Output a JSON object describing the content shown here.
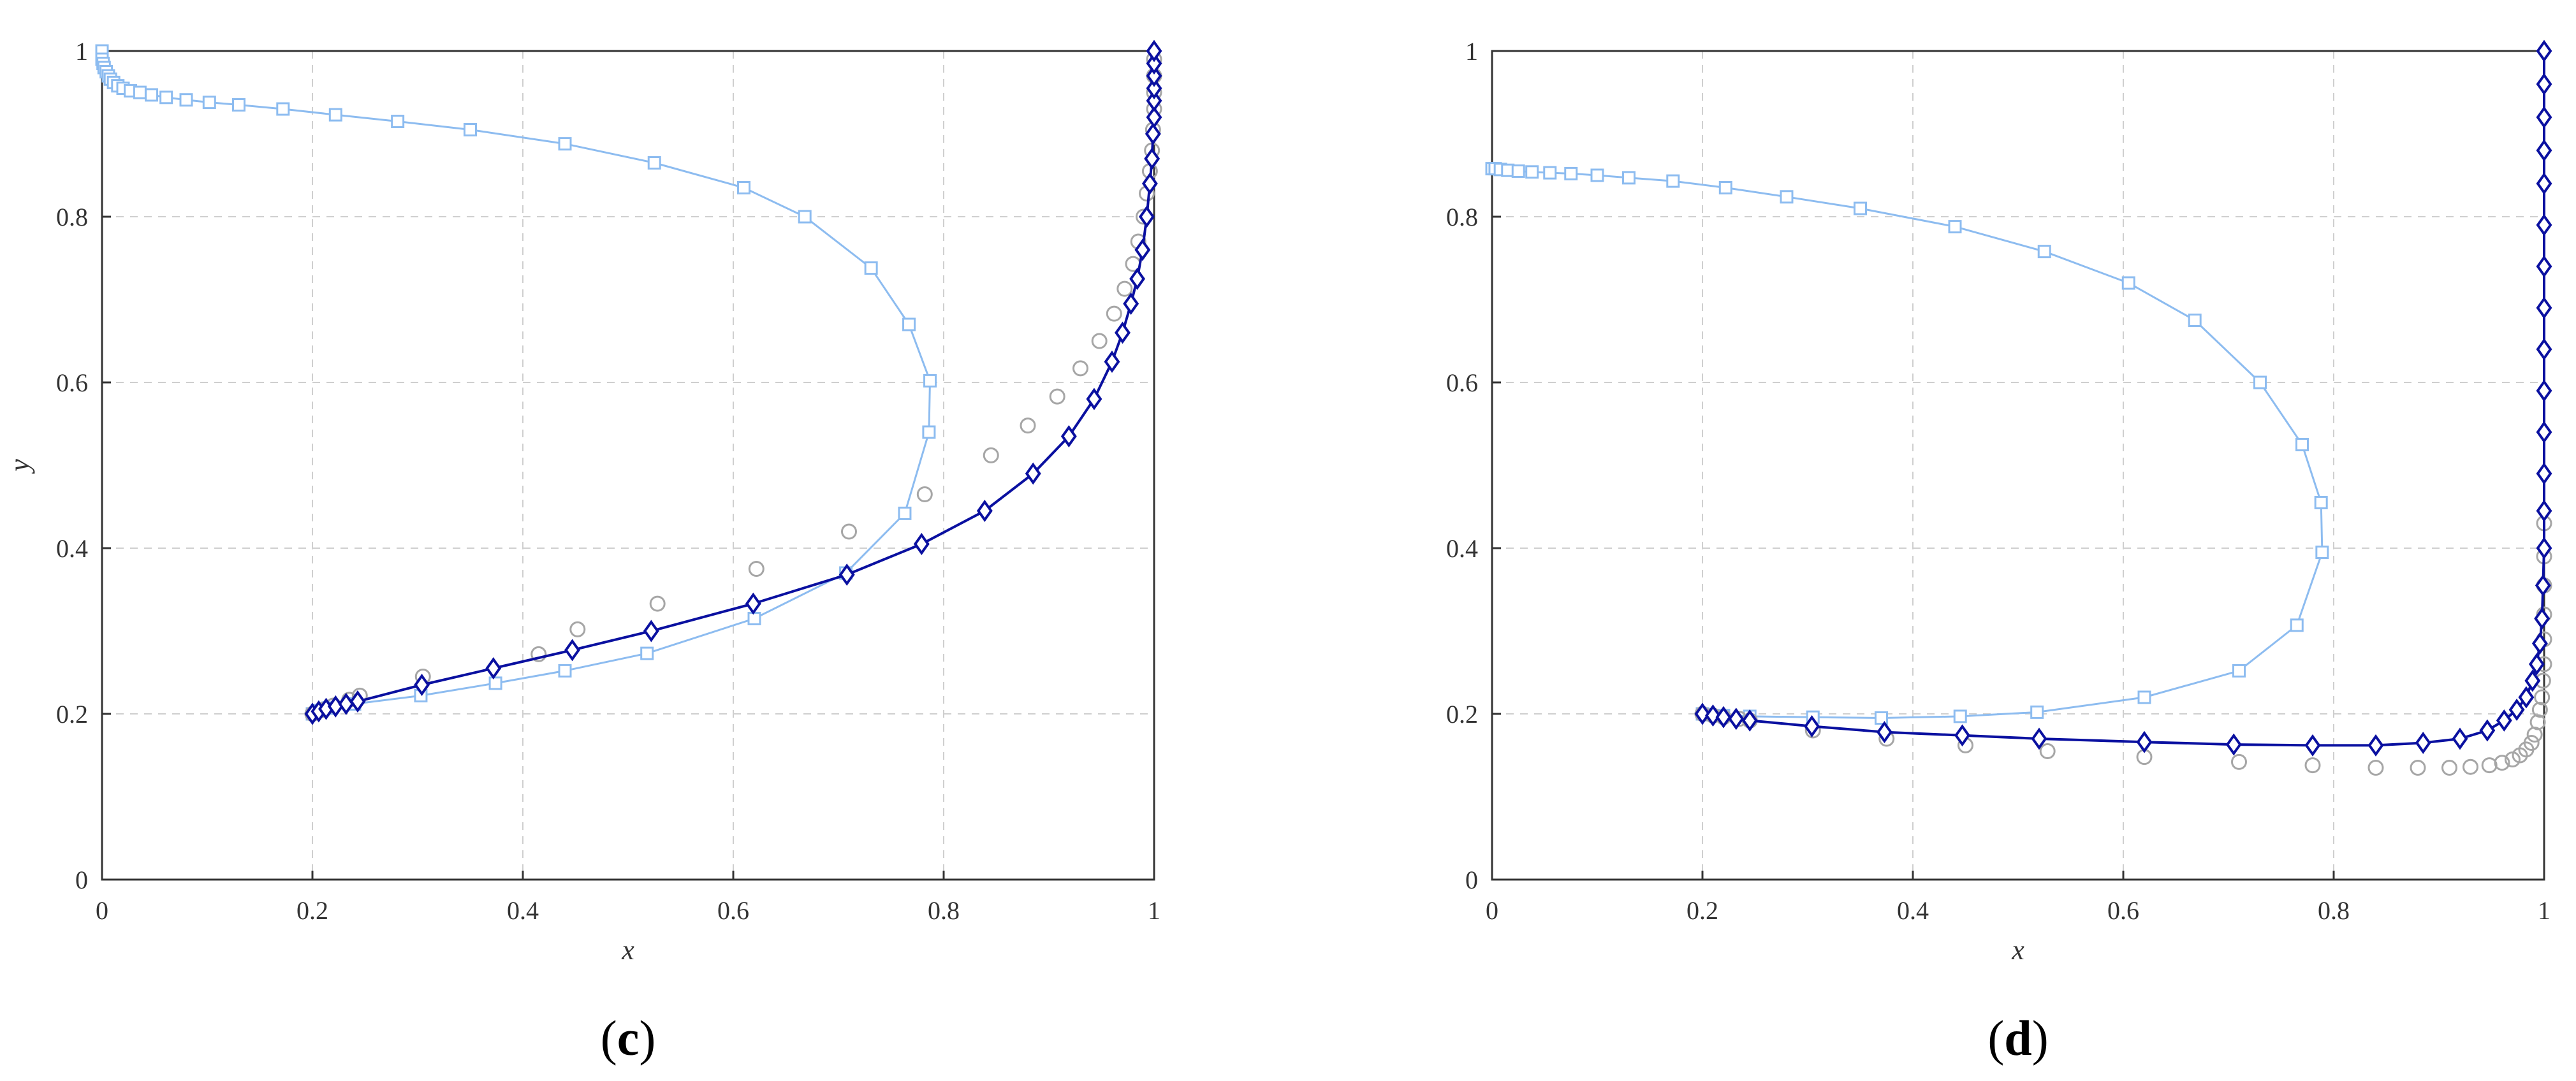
{
  "chart_data": [
    {
      "type": "line",
      "panel_label": "c",
      "xlabel": "x",
      "ylabel": "y",
      "xlim": [
        0,
        1
      ],
      "ylim": [
        0,
        1
      ],
      "xticks": [
        "0",
        "0.2",
        "0.4",
        "0.6",
        "0.8",
        "1"
      ],
      "yticks": [
        "0",
        "0.2",
        "0.4",
        "0.6",
        "0.8",
        "1"
      ],
      "grid": true,
      "series": [
        {
          "marker": "square",
          "line": true,
          "color": "#8dbcf0",
          "x": [
            0.0,
            0.0,
            0.001,
            0.002,
            0.004,
            0.006,
            0.008,
            0.011,
            0.015,
            0.02,
            0.027,
            0.036,
            0.047,
            0.061,
            0.08,
            0.102,
            0.13,
            0.172,
            0.222,
            0.281,
            0.35,
            0.44,
            0.525,
            0.61,
            0.668,
            0.731,
            0.767,
            0.787,
            0.786,
            0.763,
            0.707,
            0.62,
            0.518,
            0.44,
            0.374,
            0.303,
            0.24,
            0.215,
            0.205,
            0.2
          ],
          "y": [
            1.0,
            0.99,
            0.985,
            0.98,
            0.975,
            0.97,
            0.966,
            0.962,
            0.958,
            0.955,
            0.952,
            0.95,
            0.947,
            0.944,
            0.941,
            0.938,
            0.935,
            0.93,
            0.923,
            0.915,
            0.905,
            0.888,
            0.865,
            0.835,
            0.8,
            0.738,
            0.67,
            0.602,
            0.54,
            0.442,
            0.37,
            0.315,
            0.273,
            0.252,
            0.237,
            0.222,
            0.212,
            0.207,
            0.204,
            0.2
          ]
        },
        {
          "marker": "circle",
          "line": false,
          "color": "#a6a6a6",
          "x": [
            0.2,
            0.21,
            0.22,
            0.235,
            0.245,
            0.305,
            0.415,
            0.452,
            0.528,
            0.622,
            0.71,
            0.782,
            0.845,
            0.88,
            0.908,
            0.93,
            0.948,
            0.962,
            0.972,
            0.98,
            0.985,
            0.99,
            0.993,
            0.996,
            0.998,
            0.999,
            1.0,
            1.0,
            1.0,
            1.0
          ],
          "y": [
            0.2,
            0.205,
            0.21,
            0.217,
            0.222,
            0.245,
            0.272,
            0.302,
            0.333,
            0.375,
            0.42,
            0.465,
            0.512,
            0.548,
            0.583,
            0.617,
            0.65,
            0.683,
            0.713,
            0.743,
            0.77,
            0.8,
            0.828,
            0.855,
            0.88,
            0.905,
            0.93,
            0.95,
            0.97,
            0.99
          ]
        },
        {
          "marker": "diamond",
          "line": true,
          "color": "#0a10a0",
          "x": [
            0.2,
            0.206,
            0.213,
            0.222,
            0.232,
            0.243,
            0.304,
            0.372,
            0.447,
            0.522,
            0.619,
            0.708,
            0.779,
            0.839,
            0.885,
            0.919,
            0.943,
            0.96,
            0.97,
            0.978,
            0.984,
            0.989,
            0.993,
            0.996,
            0.998,
            0.999,
            1.0,
            1.0,
            1.0,
            1.0,
            1.0,
            1.0
          ],
          "y": [
            0.2,
            0.203,
            0.206,
            0.209,
            0.212,
            0.215,
            0.235,
            0.255,
            0.277,
            0.3,
            0.333,
            0.368,
            0.405,
            0.445,
            0.49,
            0.535,
            0.58,
            0.625,
            0.66,
            0.695,
            0.725,
            0.76,
            0.8,
            0.84,
            0.87,
            0.9,
            0.92,
            0.94,
            0.955,
            0.97,
            0.985,
            1.0
          ]
        }
      ]
    },
    {
      "type": "line",
      "panel_label": "d",
      "xlabel": "x",
      "ylabel": "",
      "xlim": [
        0,
        1
      ],
      "ylim": [
        0,
        1
      ],
      "xticks": [
        "0",
        "0.2",
        "0.4",
        "0.6",
        "0.8",
        "1"
      ],
      "yticks": [
        "0",
        "0.2",
        "0.4",
        "0.6",
        "0.8",
        "1"
      ],
      "grid": true,
      "series": [
        {
          "marker": "square",
          "line": true,
          "color": "#8dbcf0",
          "x": [
            0.0,
            0.003,
            0.008,
            0.015,
            0.025,
            0.038,
            0.055,
            0.075,
            0.1,
            0.13,
            0.172,
            0.222,
            0.28,
            0.35,
            0.44,
            0.525,
            0.605,
            0.668,
            0.73,
            0.77,
            0.788,
            0.789,
            0.765,
            0.71,
            0.62,
            0.518,
            0.445,
            0.37,
            0.305,
            0.245,
            0.22,
            0.205,
            0.2
          ],
          "y": [
            0.858,
            0.858,
            0.857,
            0.856,
            0.855,
            0.854,
            0.853,
            0.852,
            0.85,
            0.847,
            0.843,
            0.835,
            0.824,
            0.81,
            0.788,
            0.758,
            0.72,
            0.675,
            0.6,
            0.525,
            0.455,
            0.395,
            0.307,
            0.252,
            0.22,
            0.202,
            0.197,
            0.195,
            0.196,
            0.197,
            0.198,
            0.199,
            0.2
          ]
        },
        {
          "marker": "circle",
          "line": false,
          "color": "#a6a6a6",
          "x": [
            0.2,
            0.21,
            0.22,
            0.235,
            0.245,
            0.305,
            0.375,
            0.45,
            0.528,
            0.62,
            0.71,
            0.78,
            0.84,
            0.88,
            0.91,
            0.93,
            0.948,
            0.96,
            0.97,
            0.977,
            0.983,
            0.988,
            0.991,
            0.994,
            0.996,
            0.998,
            0.999,
            1.0,
            1.0,
            1.0,
            1.0,
            1.0,
            1.0
          ],
          "y": [
            0.2,
            0.198,
            0.196,
            0.194,
            0.192,
            0.18,
            0.17,
            0.162,
            0.155,
            0.148,
            0.142,
            0.138,
            0.135,
            0.135,
            0.135,
            0.136,
            0.138,
            0.141,
            0.145,
            0.15,
            0.157,
            0.165,
            0.175,
            0.19,
            0.205,
            0.22,
            0.24,
            0.26,
            0.29,
            0.32,
            0.355,
            0.39,
            0.43
          ]
        },
        {
          "marker": "diamond",
          "line": true,
          "color": "#0a10a0",
          "x": [
            0.2,
            0.21,
            0.22,
            0.232,
            0.245,
            0.304,
            0.373,
            0.447,
            0.52,
            0.62,
            0.705,
            0.78,
            0.84,
            0.885,
            0.92,
            0.946,
            0.962,
            0.974,
            0.983,
            0.989,
            0.993,
            0.996,
            0.998,
            0.999,
            1.0,
            1.0,
            1.0,
            1.0,
            1.0,
            1.0,
            1.0,
            1.0,
            1.0,
            1.0,
            1.0,
            1.0,
            1.0,
            1.0
          ],
          "y": [
            0.2,
            0.198,
            0.196,
            0.194,
            0.192,
            0.185,
            0.178,
            0.174,
            0.17,
            0.166,
            0.163,
            0.162,
            0.162,
            0.165,
            0.17,
            0.18,
            0.192,
            0.205,
            0.22,
            0.24,
            0.26,
            0.285,
            0.315,
            0.355,
            0.4,
            0.445,
            0.49,
            0.54,
            0.59,
            0.64,
            0.69,
            0.74,
            0.79,
            0.84,
            0.88,
            0.92,
            0.96,
            1.0
          ]
        }
      ]
    }
  ]
}
